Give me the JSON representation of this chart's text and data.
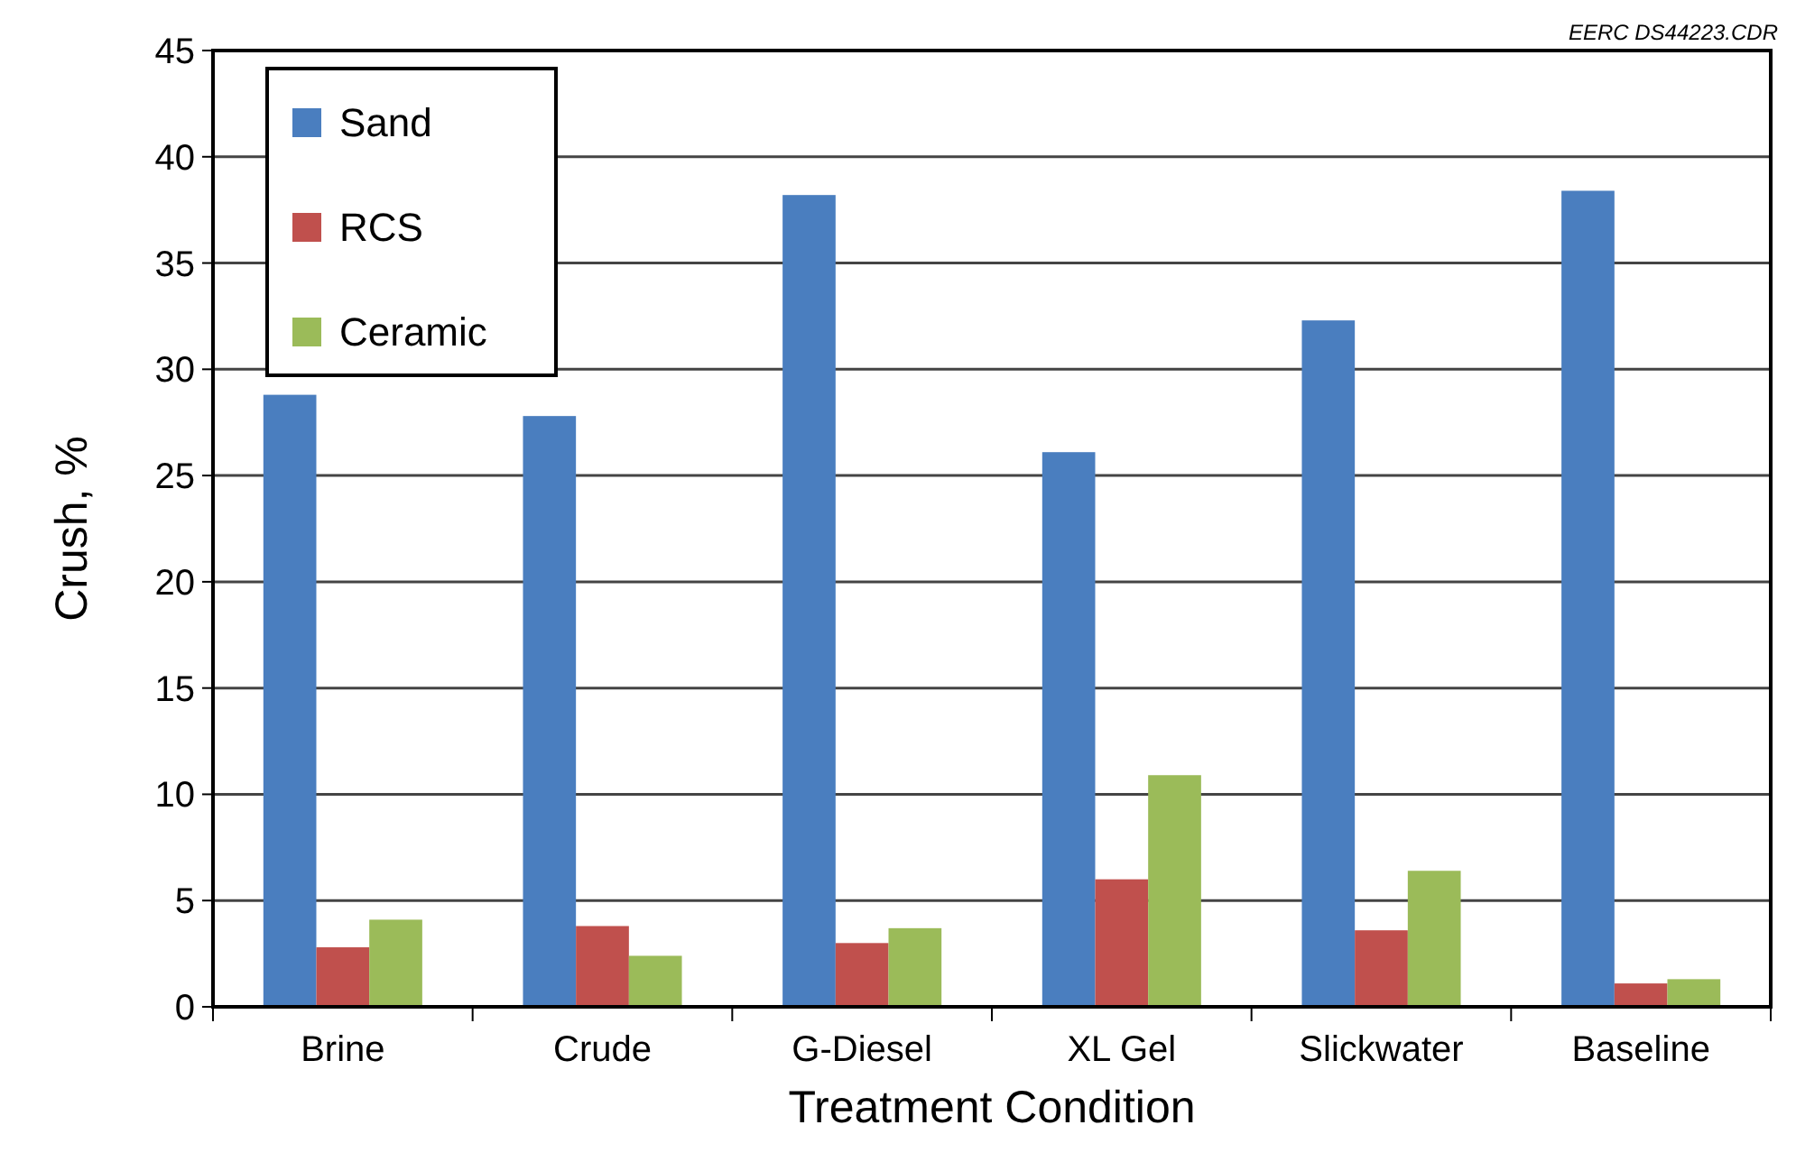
{
  "chart_data": {
    "type": "bar",
    "xlabel": "Treatment Condition",
    "ylabel": "Crush, %",
    "annotations": [
      "EERC DS44223.CDR"
    ],
    "categories": [
      "Brine",
      "Crude",
      "G-Diesel",
      "XL Gel",
      "Slickwater",
      "Baseline"
    ],
    "series": [
      {
        "name": "Sand",
        "color": "#4a7ebf",
        "values": [
          28.8,
          27.8,
          38.2,
          26.1,
          32.3,
          38.4
        ]
      },
      {
        "name": "RCS",
        "color": "#c0504d",
        "values": [
          2.8,
          3.8,
          3.0,
          6.0,
          3.6,
          1.1
        ]
      },
      {
        "name": "Ceramic",
        "color": "#9bbb59",
        "values": [
          4.1,
          2.4,
          3.7,
          10.9,
          6.4,
          1.3
        ]
      }
    ],
    "ylim": [
      0,
      45
    ],
    "yticks": [
      0,
      5,
      10,
      15,
      20,
      25,
      30,
      35,
      40,
      45
    ],
    "grid": "y",
    "legend": "top left"
  }
}
